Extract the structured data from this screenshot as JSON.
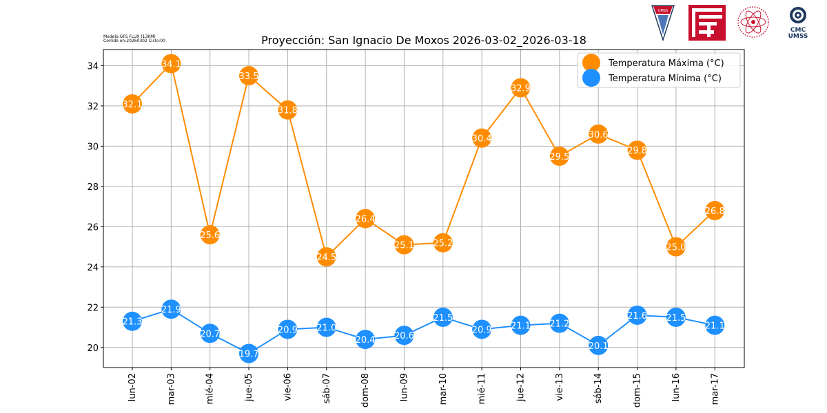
{
  "meta": {
    "model_line": "Modelo:GFS FLUX (13KM)",
    "run_line": "Corrido en:20260302 Ciclo:00"
  },
  "logos": {
    "umss_label": "UMSS",
    "cmc_line1": "CMC",
    "cmc_line2": "UMSS"
  },
  "colors": {
    "max": "#ff8c00",
    "min": "#1e90ff",
    "grid": "#b0b0b0",
    "umss_red": "#c8102e",
    "cmc_blue": "#1f3a5f"
  },
  "chart_data": {
    "type": "line",
    "title": "Proyección: San Ignacio De Moxos 2026-03-02_2026-03-18",
    "xlabel": "",
    "ylabel": "",
    "ylim": [
      19,
      34.8
    ],
    "yticks": [
      20,
      22,
      24,
      26,
      28,
      30,
      32,
      34
    ],
    "grid": true,
    "legend_position": "top-right",
    "categories": [
      "lun-02",
      "mar-03",
      "mié-04",
      "jue-05",
      "vie-06",
      "sáb-07",
      "dom-08",
      "lun-09",
      "mar-10",
      "mié-11",
      "jue-12",
      "vie-13",
      "sáb-14",
      "dom-15",
      "lun-16",
      "mar-17"
    ],
    "series": [
      {
        "name": "Temperatura Máxima  (°C)",
        "color": "#ff8c00",
        "values": [
          32.1,
          34.1,
          25.6,
          33.5,
          31.8,
          24.5,
          26.4,
          25.1,
          25.2,
          30.4,
          32.9,
          29.5,
          30.6,
          29.8,
          25.0,
          26.8
        ]
      },
      {
        "name": "Temperatura Mínima  (°C)",
        "color": "#1e90ff",
        "values": [
          21.3,
          21.9,
          20.7,
          19.7,
          20.9,
          21.0,
          20.4,
          20.6,
          21.5,
          20.9,
          21.1,
          21.2,
          20.1,
          21.6,
          21.5,
          21.1
        ]
      }
    ]
  }
}
